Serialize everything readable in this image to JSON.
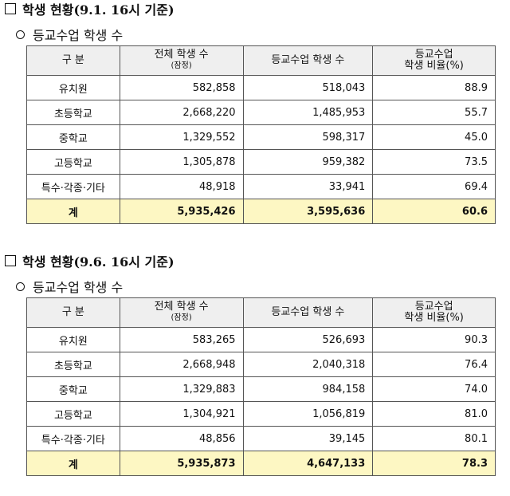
{
  "sections": [
    {
      "heading": "학생 현황(9.1. 16시 기준)",
      "subheading": "등교수업 학생 수",
      "table": {
        "header": [
          [
            "구 분"
          ],
          [
            "전체 학생 수",
            "(잠정)"
          ],
          [
            "등교수업 학생 수"
          ],
          [
            "등교수업",
            "학생 비율(%)"
          ]
        ],
        "rows": [
          [
            "유치원",
            "582,858",
            "518,043",
            "88.9"
          ],
          [
            "초등학교",
            "2,668,220",
            "1,485,953",
            "55.7"
          ],
          [
            "중학교",
            "1,329,552",
            "598,317",
            "45.0"
          ],
          [
            "고등학교",
            "1,305,878",
            "959,382",
            "73.5"
          ],
          [
            "특수·각종·기타",
            "48,918",
            "33,941",
            "69.4"
          ]
        ],
        "total": [
          "계",
          "5,935,426",
          "3,595,636",
          "60.6"
        ]
      }
    },
    {
      "heading": "학생 현황(9.6. 16시 기준)",
      "subheading": "등교수업 학생 수",
      "table": {
        "header": [
          [
            "구 분"
          ],
          [
            "전체 학생 수",
            "(잠정)"
          ],
          [
            "등교수업 학생 수"
          ],
          [
            "등교수업",
            "학생 비율(%)"
          ]
        ],
        "rows": [
          [
            "유치원",
            "583,265",
            "526,693",
            "90.3"
          ],
          [
            "초등학교",
            "2,668,948",
            "2,040,318",
            "76.4"
          ],
          [
            "중학교",
            "1,329,883",
            "984,158",
            "74.0"
          ],
          [
            "고등학교",
            "1,304,921",
            "1,056,819",
            "81.0"
          ],
          [
            "특수·각종·기타",
            "48,856",
            "39,145",
            "80.1"
          ]
        ],
        "total": [
          "계",
          "5,935,873",
          "4,647,133",
          "78.3"
        ]
      }
    }
  ]
}
